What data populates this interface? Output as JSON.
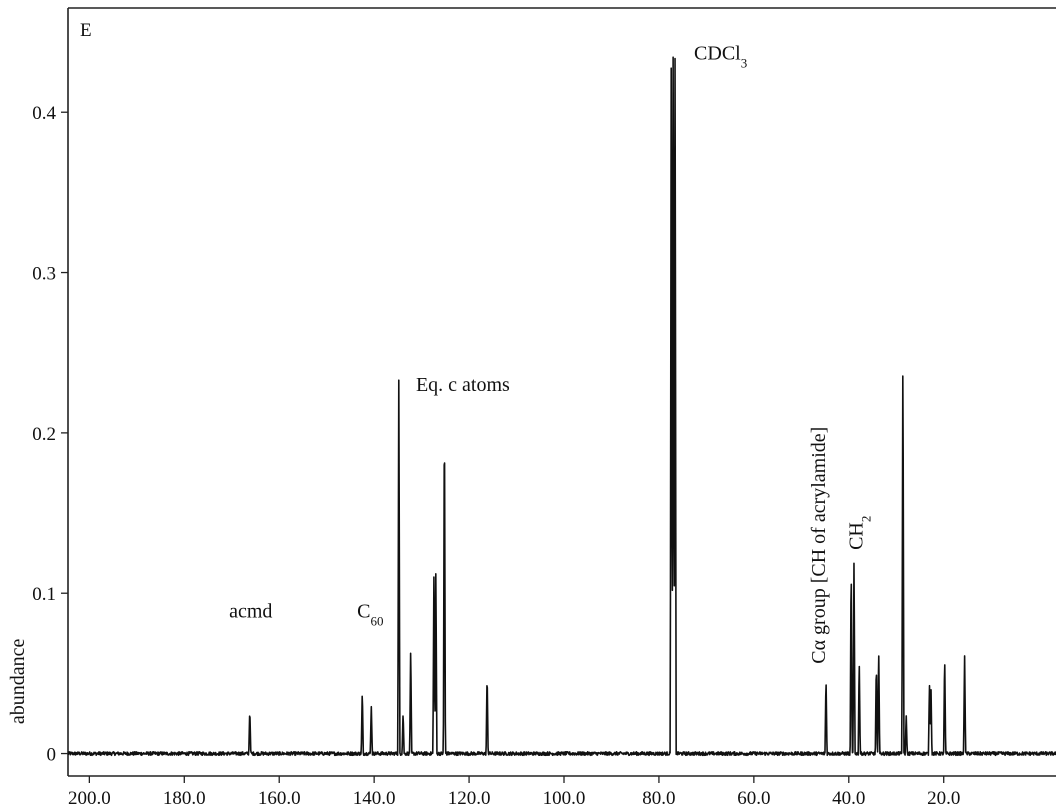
{
  "colors": {
    "trace": "#111111",
    "axis": "#222222",
    "background": "#ffffff"
  },
  "chart_data": {
    "type": "line",
    "panel_label": "E",
    "ylabel": "abundance",
    "xlabel": "",
    "x_reversed": true,
    "xlim": [
      204.5,
      -4.5
    ],
    "ylim": [
      -0.014,
      0.465
    ],
    "xticks": [
      "200.0",
      "180.0",
      "160.0",
      "140.0",
      "120.0",
      "100.0",
      "80.0",
      "60.0",
      "40.0",
      "20.0"
    ],
    "yticks": [
      "0",
      "0.1",
      "0.2",
      "0.3",
      "0.4"
    ],
    "grid": false,
    "legend": "none",
    "baseline": 0,
    "peaks": [
      {
        "x": 166.2,
        "y": 0.028
      },
      {
        "x": 142.5,
        "y": 0.04
      },
      {
        "x": 140.6,
        "y": 0.03
      },
      {
        "x": 134.8,
        "y": 0.24
      },
      {
        "x": 133.9,
        "y": 0.026
      },
      {
        "x": 132.3,
        "y": 0.067
      },
      {
        "x": 127.4,
        "y": 0.116
      },
      {
        "x": 127.0,
        "y": 0.117
      },
      {
        "x": 125.2,
        "y": 0.221
      },
      {
        "x": 116.2,
        "y": 0.051
      },
      {
        "x": 77.4,
        "y": 0.452
      },
      {
        "x": 77.0,
        "y": 0.455
      },
      {
        "x": 76.6,
        "y": 0.45
      },
      {
        "x": 44.8,
        "y": 0.048
      },
      {
        "x": 39.5,
        "y": 0.122
      },
      {
        "x": 38.9,
        "y": 0.123
      },
      {
        "x": 37.8,
        "y": 0.059
      },
      {
        "x": 34.2,
        "y": 0.058
      },
      {
        "x": 33.7,
        "y": 0.066
      },
      {
        "x": 28.6,
        "y": 0.257
      },
      {
        "x": 27.9,
        "y": 0.024
      },
      {
        "x": 23.0,
        "y": 0.044
      },
      {
        "x": 22.7,
        "y": 0.046
      },
      {
        "x": 19.8,
        "y": 0.062
      },
      {
        "x": 15.6,
        "y": 0.062
      }
    ],
    "annotations": [
      {
        "id": "acmd",
        "text": "acmd",
        "x": 166.0,
        "y": 0.085,
        "rotate": false
      },
      {
        "id": "c60",
        "text": "C",
        "sub": "60",
        "x": 140.8,
        "y": 0.085,
        "rotate": false
      },
      {
        "id": "eq",
        "text": "Eq. c atoms",
        "x": 121.3,
        "y": 0.226,
        "rotate": false
      },
      {
        "id": "cdcl3",
        "text": "CDCl",
        "sub": "3",
        "x": 67.0,
        "y": 0.433,
        "rotate": false
      },
      {
        "id": "calpha",
        "text": "Cα group [CH of acrylamide]",
        "x": 45.0,
        "y": 0.056,
        "rotate": true
      },
      {
        "id": "ch2",
        "text": "CH",
        "sub": "2",
        "x": 37.1,
        "y": 0.127,
        "rotate": true
      }
    ]
  }
}
